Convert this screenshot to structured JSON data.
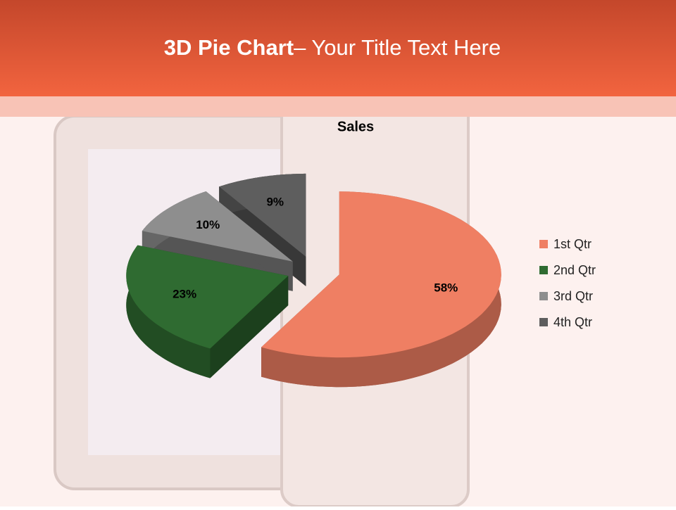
{
  "slide_title": {
    "bold": "3D Pie Chart",
    "rest": "– Your Title Text Here"
  },
  "chart_data": {
    "type": "pie3d",
    "title": "Sales",
    "categories": [
      "1st Qtr",
      "2nd Qtr",
      "3rd Qtr",
      "4th Qtr"
    ],
    "values": [
      58,
      23,
      10,
      9
    ],
    "value_labels": [
      "58%",
      "23%",
      "10%",
      "9%"
    ],
    "colors": [
      "#ef7f63",
      "#2f6b31",
      "#8e8e8e",
      "#5e5e5e"
    ],
    "legend": "right"
  }
}
